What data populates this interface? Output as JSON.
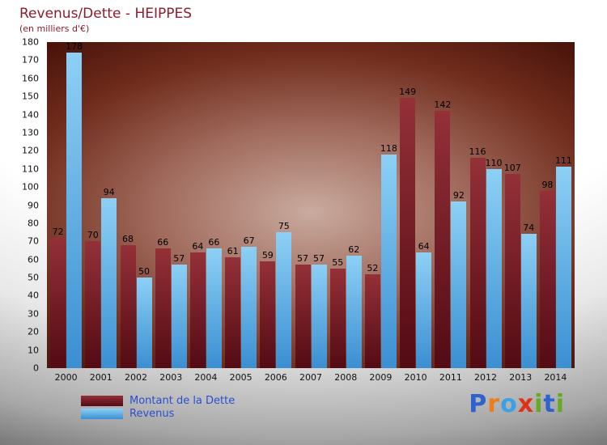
{
  "chart_data": {
    "type": "bar",
    "title": "Revenus/Dette - HEIPPES",
    "subtitle": "(en milliers d'€)",
    "categories": [
      "2000",
      "2001",
      "2002",
      "2003",
      "2004",
      "2005",
      "2006",
      "2007",
      "2008",
      "2009",
      "2010",
      "2011",
      "2012",
      "2013",
      "2014"
    ],
    "series": [
      {
        "name": "Montant de la Dette",
        "key": "dette",
        "color_top": "#943038",
        "color_bottom": "#530b14",
        "values": [
          72,
          70,
          68,
          66,
          64,
          61,
          59,
          57,
          55,
          52,
          149,
          142,
          116,
          107,
          98
        ]
      },
      {
        "name": "Revenus",
        "key": "revenus",
        "color_top": "#8dd0f5",
        "color_bottom": "#3a8fd2",
        "values": [
          178,
          94,
          50,
          57,
          66,
          67,
          75,
          57,
          62,
          118,
          64,
          92,
          110,
          74,
          111
        ]
      }
    ],
    "xlabel": "",
    "ylabel": "",
    "ylim": [
      0,
      180
    ],
    "ytick_step": 10,
    "grid": false,
    "legend_position": "bottom-left"
  },
  "logo": {
    "text": "Proxiti",
    "letters": [
      {
        "ch": "P",
        "color": "#2e62cc"
      },
      {
        "ch": "r",
        "color": "#ee7d18"
      },
      {
        "ch": "o",
        "color": "#3aa0e8"
      },
      {
        "ch": "x",
        "color": "#e03018"
      },
      {
        "ch": "i",
        "color": "#66aa22"
      },
      {
        "ch": "t",
        "color": "#2e62cc"
      },
      {
        "ch": "i",
        "color": "#66aa22"
      }
    ]
  }
}
